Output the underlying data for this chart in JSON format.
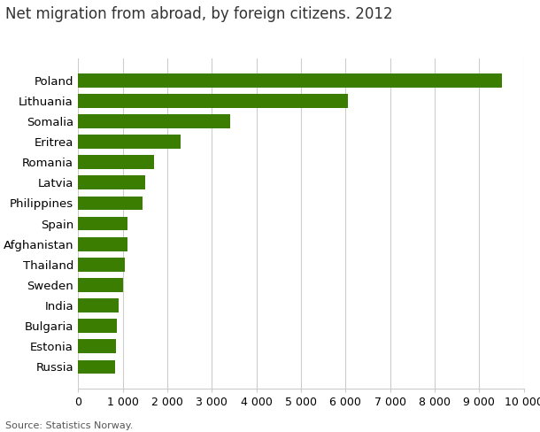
{
  "title": "Net migration from abroad, by foreign citizens. 2012",
  "categories": [
    "Russia",
    "Estonia",
    "Bulgaria",
    "India",
    "Sweden",
    "Thailand",
    "Afghanistan",
    "Spain",
    "Philippines",
    "Latvia",
    "Romania",
    "Eritrea",
    "Somalia",
    "Lithuania",
    "Poland"
  ],
  "values": [
    820,
    840,
    870,
    900,
    1000,
    1050,
    1100,
    1100,
    1450,
    1500,
    1700,
    2300,
    3400,
    6050,
    9500
  ],
  "bar_color": "#3a7d00",
  "xlim": [
    0,
    10000
  ],
  "xtick_values": [
    0,
    1000,
    2000,
    3000,
    4000,
    5000,
    6000,
    7000,
    8000,
    9000,
    10000
  ],
  "source_text": "Source: Statistics Norway.",
  "background_color": "#ffffff",
  "grid_color": "#cccccc",
  "title_fontsize": 12,
  "label_fontsize": 9.5,
  "tick_fontsize": 9
}
